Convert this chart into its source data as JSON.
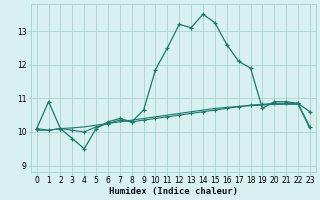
{
  "xlabel": "Humidex (Indice chaleur)",
  "ylabel": "",
  "bg_color": "#d8f0f0",
  "grid_color": "#aad4d0",
  "line_color": "#1a7a6a",
  "xlim": [
    -0.5,
    23.5
  ],
  "ylim": [
    8.8,
    13.8
  ],
  "yticks": [
    9,
    10,
    11,
    12,
    13
  ],
  "xticks": [
    0,
    1,
    2,
    3,
    4,
    5,
    6,
    7,
    8,
    9,
    10,
    11,
    12,
    13,
    14,
    15,
    16,
    17,
    18,
    19,
    20,
    21,
    22,
    23
  ],
  "curve1_x": [
    0,
    1,
    2,
    3,
    4,
    5,
    6,
    7,
    8,
    9,
    10,
    11,
    12,
    13,
    14,
    15,
    16,
    17,
    18,
    19,
    20,
    21,
    22,
    23
  ],
  "curve1_y": [
    10.1,
    10.9,
    10.1,
    9.8,
    9.5,
    10.1,
    10.3,
    10.4,
    10.3,
    10.65,
    11.85,
    12.5,
    13.2,
    13.1,
    13.5,
    13.25,
    12.6,
    12.1,
    11.9,
    10.7,
    10.9,
    10.9,
    10.85,
    10.6
  ],
  "curve2_x": [
    0,
    1,
    2,
    3,
    4,
    5,
    6,
    7,
    8,
    9,
    10,
    11,
    12,
    13,
    14,
    15,
    16,
    17,
    18,
    19,
    20,
    21,
    22,
    23
  ],
  "curve2_y": [
    10.1,
    10.05,
    10.1,
    10.05,
    10.0,
    10.15,
    10.25,
    10.35,
    10.3,
    10.35,
    10.4,
    10.45,
    10.5,
    10.55,
    10.6,
    10.65,
    10.7,
    10.75,
    10.8,
    10.82,
    10.85,
    10.85,
    10.85,
    10.15
  ],
  "curve3_x": [
    0,
    1,
    2,
    3,
    4,
    5,
    6,
    7,
    8,
    9,
    10,
    11,
    12,
    13,
    14,
    15,
    16,
    17,
    18,
    19,
    20,
    21,
    22,
    23
  ],
  "curve3_y": [
    10.05,
    10.05,
    10.1,
    10.12,
    10.15,
    10.2,
    10.25,
    10.3,
    10.35,
    10.4,
    10.45,
    10.5,
    10.55,
    10.6,
    10.65,
    10.7,
    10.73,
    10.76,
    10.78,
    10.8,
    10.82,
    10.82,
    10.82,
    10.1
  ],
  "tick_fontsize": 5.5,
  "xlabel_fontsize": 6.5
}
